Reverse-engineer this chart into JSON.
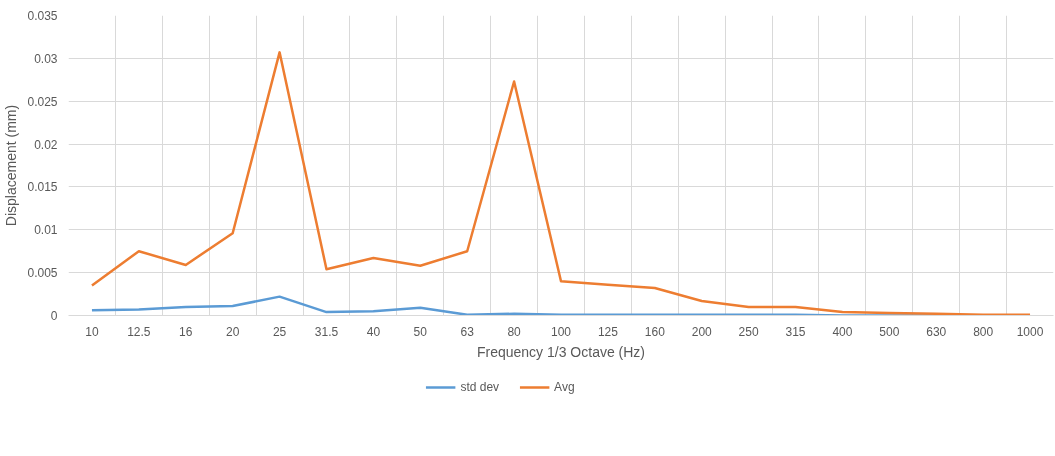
{
  "chart_data": {
    "type": "line",
    "xlabel": "Frequency 1/3 Octave (Hz)",
    "ylabel": "Displacement (mm)",
    "categories": [
      "10",
      "12.5",
      "16",
      "20",
      "25",
      "31.5",
      "40",
      "50",
      "63",
      "80",
      "100",
      "125",
      "160",
      "200",
      "250",
      "315",
      "400",
      "500",
      "630",
      "800",
      "1000"
    ],
    "series": [
      {
        "name": "std dev",
        "color": "#5b9bd5",
        "values": [
          0.0006,
          0.0007,
          0.001,
          0.0011,
          0.0022,
          0.0004,
          0.0005,
          0.0009,
          0.0001,
          0.0002,
          0.0001,
          0.0001,
          0.0001,
          0.0001,
          0.0001,
          0.0001,
          0,
          0,
          0,
          null,
          null
        ]
      },
      {
        "name": "Avg",
        "color": "#ed7d31",
        "values": [
          0.0035,
          0.0075,
          0.0059,
          0.0096,
          0.0307,
          0.0054,
          0.0067,
          0.0058,
          0.0075,
          0.0273,
          0.004,
          0.0036,
          0.0032,
          0.0017,
          0.001,
          0.001,
          0.0004,
          0.0003,
          0.0002,
          0.0001,
          0.0001
        ]
      }
    ],
    "ylim": [
      0,
      0.035
    ],
    "yticks": [
      0,
      0.005,
      0.01,
      0.015,
      0.02,
      0.025,
      0.03,
      0.035
    ],
    "grid": true,
    "legend": "bottom",
    "marker": "none",
    "line_style": "solid"
  }
}
